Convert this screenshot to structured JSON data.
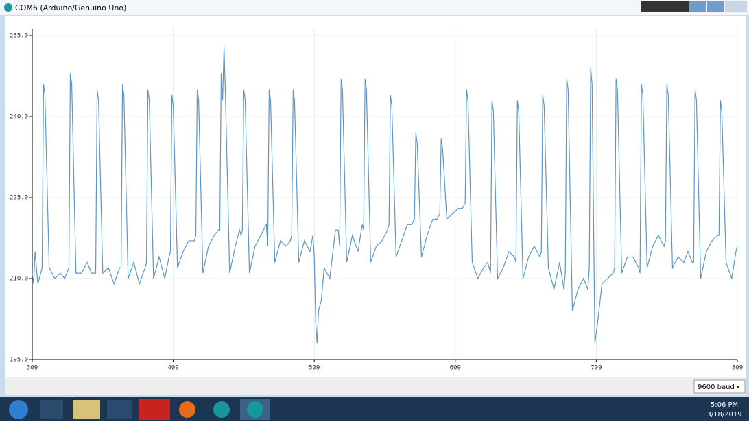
{
  "window": {
    "title": "COM6 (Arduino/Genuino Uno)"
  },
  "chart_data": {
    "type": "line",
    "color": "#5a96c8",
    "grid": true,
    "xlim": [
      309,
      809
    ],
    "xticks": [
      309,
      409,
      509,
      609,
      709,
      809
    ],
    "ylim": [
      195,
      255
    ],
    "yticks": [
      {
        "value": 195,
        "label": "195.0"
      },
      {
        "value": 210,
        "label": "210.0"
      },
      {
        "value": 225,
        "label": "225.0"
      },
      {
        "value": 240,
        "label": "240.0"
      },
      {
        "value": 255,
        "label": "255.0"
      }
    ],
    "x": [
      309,
      310,
      311,
      313,
      316,
      317,
      318,
      321,
      325,
      329,
      332,
      335,
      336,
      337,
      340,
      344,
      348,
      351,
      354,
      355,
      356,
      359,
      363,
      367,
      371,
      372,
      373,
      374,
      377,
      381,
      385,
      389,
      390,
      391,
      392,
      395,
      399,
      403,
      406,
      407,
      408,
      409,
      412,
      416,
      420,
      424,
      425,
      426,
      427,
      430,
      434,
      438,
      441,
      442,
      443,
      444,
      445,
      446,
      449,
      453,
      456,
      457,
      458,
      459,
      460,
      463,
      467,
      471,
      475,
      476,
      477,
      478,
      481,
      485,
      489,
      492,
      493,
      494,
      495,
      498,
      502,
      506,
      508,
      509,
      510,
      511,
      512,
      514,
      516,
      520,
      524,
      526,
      527,
      528,
      529,
      532,
      536,
      540,
      543,
      544,
      545,
      546,
      549,
      553,
      557,
      561,
      562,
      563,
      564,
      567,
      571,
      575,
      578,
      580,
      581,
      582,
      585,
      589,
      593,
      596,
      598,
      599,
      600,
      603,
      607,
      611,
      614,
      616,
      617,
      618,
      621,
      625,
      629,
      632,
      634,
      635,
      636,
      639,
      643,
      647,
      651,
      652,
      653,
      654,
      657,
      661,
      665,
      669,
      670,
      671,
      672,
      675,
      679,
      683,
      686,
      687,
      688,
      689,
      692,
      696,
      700,
      703,
      704,
      705,
      706,
      708,
      710,
      713,
      717,
      721,
      722,
      723,
      724,
      727,
      731,
      735,
      739,
      740,
      741,
      742,
      745,
      749,
      753,
      757,
      758,
      759,
      760,
      763,
      767,
      771,
      774,
      777,
      778,
      779,
      780,
      783,
      787,
      791,
      795,
      796,
      797,
      798,
      801,
      805,
      808,
      809
    ],
    "values": [
      211,
      209,
      215,
      209,
      212,
      246,
      244,
      212,
      210,
      211,
      210,
      212,
      248,
      246,
      211,
      211,
      213,
      211,
      211,
      245,
      243,
      211,
      212,
      209,
      212,
      212,
      246,
      244,
      210,
      213,
      209,
      212,
      213,
      245,
      243,
      210,
      214,
      210,
      214,
      215,
      244,
      242,
      212,
      215,
      217,
      217,
      218,
      245,
      243,
      211,
      216,
      218,
      219,
      219,
      248,
      243,
      253,
      244,
      211,
      216,
      219,
      218,
      219,
      245,
      243,
      211,
      216,
      218,
      220,
      216,
      245,
      243,
      213,
      217,
      216,
      217,
      218,
      245,
      243,
      213,
      217,
      215,
      218,
      214,
      202,
      198,
      204,
      206,
      212,
      210,
      219,
      219,
      216,
      247,
      245,
      213,
      218,
      215,
      220,
      219,
      247,
      245,
      213,
      216,
      217,
      219,
      220,
      244,
      242,
      214,
      217,
      220,
      220,
      221,
      237,
      235,
      214,
      218,
      221,
      221,
      222,
      236,
      234,
      221,
      222,
      223,
      223,
      224,
      245,
      243,
      213,
      210,
      212,
      213,
      211,
      243,
      241,
      210,
      212,
      215,
      214,
      213,
      243,
      241,
      210,
      214,
      216,
      214,
      215,
      244,
      242,
      212,
      208,
      213,
      208,
      211,
      247,
      245,
      204,
      208,
      210,
      208,
      212,
      249,
      246,
      198,
      202,
      209,
      210,
      211,
      212,
      247,
      245,
      211,
      214,
      214,
      212,
      211,
      246,
      244,
      212,
      216,
      218,
      216,
      217,
      246,
      244,
      212,
      214,
      213,
      215,
      213,
      213,
      245,
      243,
      210,
      215,
      217,
      218,
      218,
      243,
      241,
      213,
      210,
      215,
      216
    ]
  },
  "footer": {
    "baud": "9600 baud"
  },
  "taskbar": {
    "time": "5:06 PM",
    "date": "3/18/2019"
  }
}
